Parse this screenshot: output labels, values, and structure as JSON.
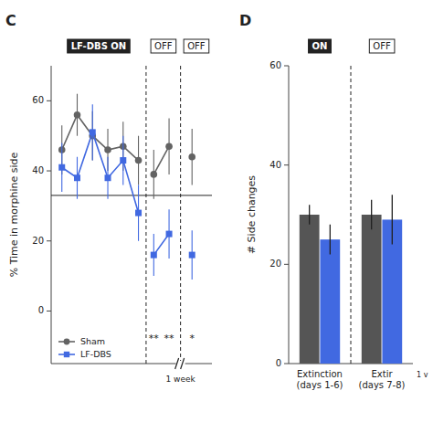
{
  "chart_data": [
    {
      "type": "line",
      "panel_label": "C",
      "ylabel": "% Time in morphine side",
      "x": [
        1,
        2,
        3,
        4,
        5,
        6,
        null,
        7,
        8,
        null,
        9.5
      ],
      "series": [
        {
          "name": "Sham",
          "color": "#636363",
          "marker": "circle",
          "values": [
            46,
            56,
            50,
            46,
            47,
            43,
            null,
            39,
            47,
            null,
            44
          ],
          "errors": [
            7,
            6,
            7,
            6,
            7,
            7,
            null,
            7,
            8,
            null,
            8
          ]
        },
        {
          "name": "LF-DBS",
          "color": "#4169e1",
          "marker": "square",
          "values": [
            41,
            38,
            51,
            38,
            43,
            28,
            null,
            16,
            22,
            null,
            16
          ],
          "errors": [
            7,
            6,
            8,
            6,
            7,
            8,
            null,
            6,
            7,
            null,
            7
          ]
        }
      ],
      "hline": 33,
      "vlines": [
        6.5,
        8.75
      ],
      "section_labels": [
        "LF-DBS ON",
        "OFF",
        "OFF"
      ],
      "annotations": [
        {
          "x": 7,
          "y": -8,
          "text": "**"
        },
        {
          "x": 8,
          "y": -8,
          "text": "**"
        },
        {
          "x": 9.5,
          "y": -8,
          "text": "*"
        }
      ],
      "break_label": "1 week",
      "xlim": [
        0.3,
        10.8
      ],
      "ylim": [
        -15,
        70
      ],
      "yticks": [
        0,
        20,
        40,
        60
      ],
      "tick_labels": "y",
      "grid": false,
      "legend": "lower left"
    },
    {
      "type": "bar",
      "panel_label": "D",
      "ylabel": "# Side changes",
      "categories": [
        "Extinction\n(days 1-6)",
        "Extir\n(days 7-8)"
      ],
      "series": [
        {
          "color": "#555555",
          "values": [
            30,
            30
          ],
          "errors": [
            2,
            3
          ]
        },
        {
          "color": "#4169e1",
          "values": [
            25,
            29
          ],
          "errors": [
            3,
            5
          ]
        }
      ],
      "section_labels": [
        "ON",
        "OFF"
      ],
      "note": "1 v",
      "ylim": [
        0,
        60
      ],
      "yticks": [
        0,
        20,
        40,
        60
      ],
      "grid": false
    }
  ]
}
